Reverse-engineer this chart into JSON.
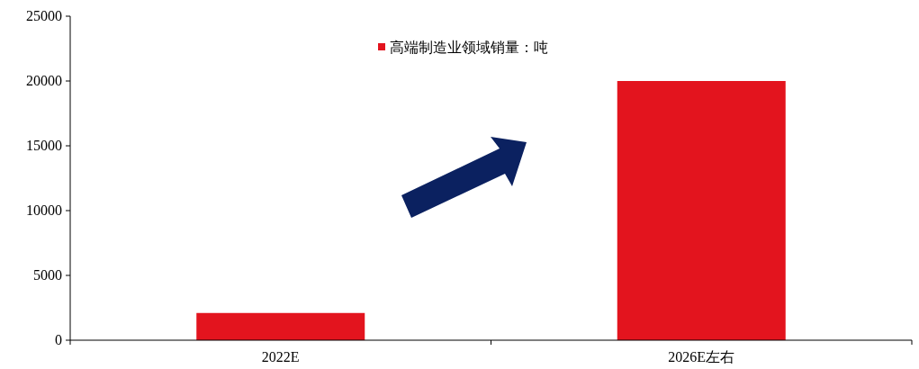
{
  "chart_data": {
    "type": "bar",
    "categories": [
      "2022E",
      "2026E左右"
    ],
    "series": [
      {
        "name": "高端制造业领域销量：吨",
        "color": "#e3141e",
        "values": [
          2100,
          20000
        ]
      }
    ],
    "ylim": [
      0,
      25000
    ],
    "yticks": [
      0,
      5000,
      10000,
      15000,
      20000,
      25000
    ],
    "grid": false,
    "legend": "top"
  }
}
